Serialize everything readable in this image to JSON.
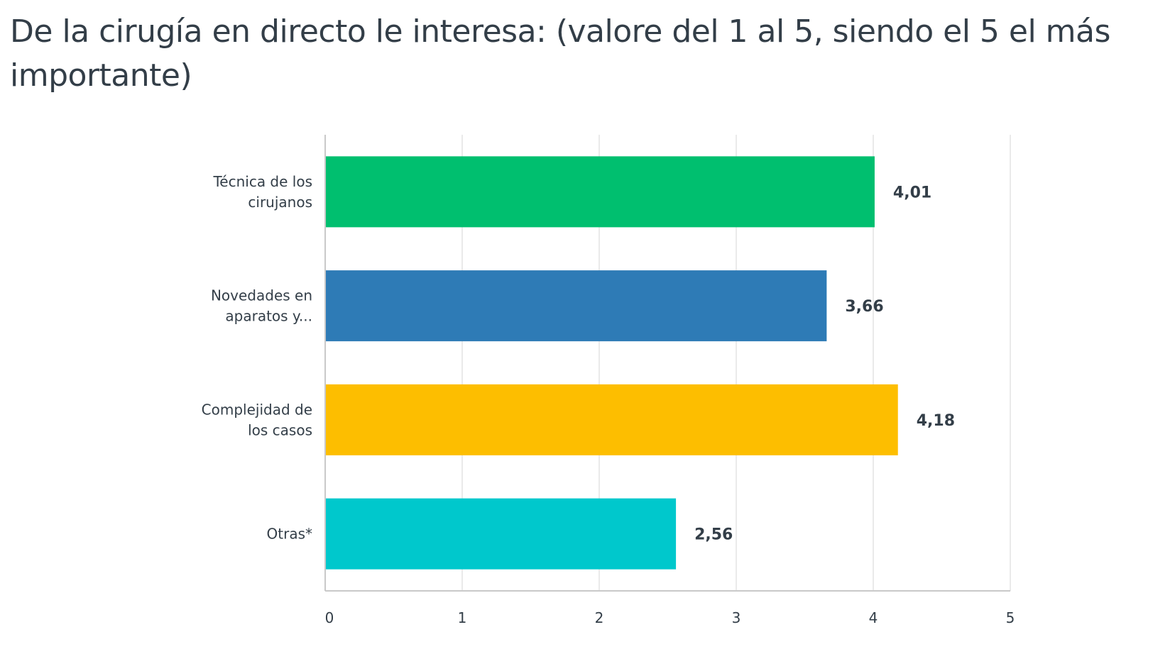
{
  "chart_data": {
    "type": "bar",
    "orientation": "horizontal",
    "title": "De la cirugía en directo le interesa: (valore del 1 al 5, siendo el 5 el más importante)",
    "categories": [
      [
        "Técnica de los",
        "cirujanos"
      ],
      [
        "Novedades en",
        "aparatos y..."
      ],
      [
        "Complejidad de",
        "los casos"
      ],
      [
        "Otras*"
      ]
    ],
    "values": [
      4.01,
      3.66,
      4.18,
      2.56
    ],
    "data_labels": [
      "4,01",
      "3,66",
      "4,18",
      "2,56"
    ],
    "bar_colors": [
      "#00bf6f",
      "#2e7bb6",
      "#fdbe00",
      "#00c8cc"
    ],
    "xlim": [
      0,
      5
    ],
    "x_ticks": [
      0,
      1,
      2,
      3,
      4,
      5
    ],
    "x_tick_labels": [
      "0",
      "1",
      "2",
      "3",
      "4",
      "5"
    ],
    "grid": true,
    "legend": false
  }
}
